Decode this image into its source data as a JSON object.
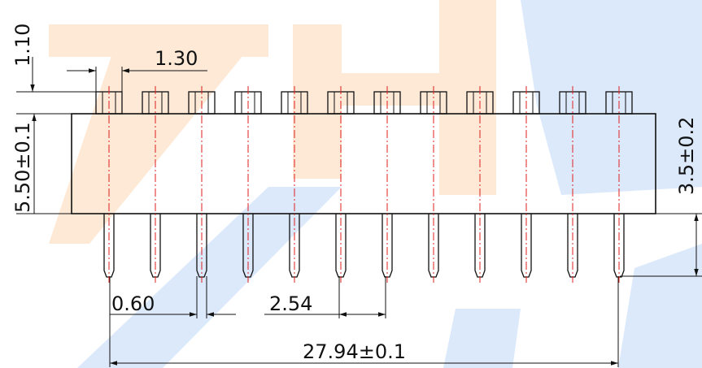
{
  "drawing": {
    "pin_count": 12,
    "watermark_text": "ZHJ",
    "dimensions": {
      "top_height": "1.10",
      "pin_width_top": "1.30",
      "body_height": "5.50±0.1",
      "tail_length": "3.5±0.2",
      "pin_width_bottom": "0.60",
      "pitch": "2.54",
      "overall_length": "27.94±0.1"
    }
  },
  "colors": {
    "line": "#111111",
    "centerline": "#e0201c",
    "watermark_orange": "#fde9d6",
    "watermark_blue": "#dbe9fb"
  }
}
